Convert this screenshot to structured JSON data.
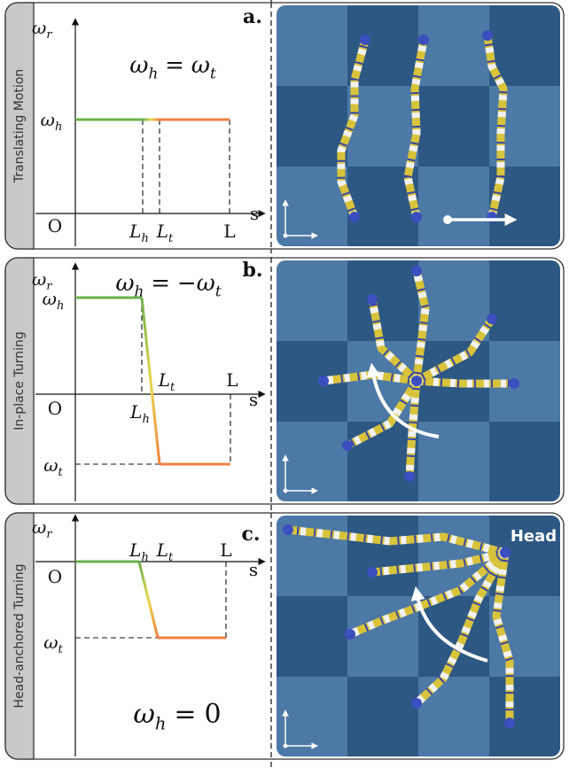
{
  "panels": [
    {
      "side_label": "Translating Motion",
      "letter": "a.",
      "equation": [
        {
          "base": "ω",
          "sub": "h"
        },
        "=",
        {
          "base": "ω",
          "sub": "t"
        }
      ],
      "labels": {
        "y_axis": {
          "base": "ω",
          "sub": "r"
        },
        "x_axis": "s",
        "origin": "O",
        "omega_h": {
          "base": "ω",
          "sub": "h"
        },
        "L_h": {
          "base": "L",
          "sub": "h"
        },
        "L_t": {
          "base": "L",
          "sub": "t"
        },
        "L": "L"
      }
    },
    {
      "side_label": "In-place Turning",
      "letter": "b.",
      "equation": [
        {
          "base": "ω",
          "sub": "h"
        },
        "=",
        {
          "base": "−ω",
          "sub": "t"
        }
      ],
      "labels": {
        "y_axis": {
          "base": "ω",
          "sub": "r"
        },
        "x_axis": "s",
        "origin": "O",
        "omega_h": {
          "base": "ω",
          "sub": "h"
        },
        "omega_t": {
          "base": "ω",
          "sub": "t"
        },
        "L_h": {
          "base": "L",
          "sub": "h"
        },
        "L_t": {
          "base": "L",
          "sub": "t"
        },
        "L": "L"
      }
    },
    {
      "side_label": "Head-anchored Turning",
      "letter": "c.",
      "equation": [
        {
          "base": "ω",
          "sub": "h"
        },
        "=",
        "0"
      ],
      "image_label": "Head",
      "labels": {
        "y_axis": {
          "base": "ω",
          "sub": "r"
        },
        "x_axis": "s",
        "origin": "O",
        "omega_t": {
          "base": "ω",
          "sub": "t"
        },
        "L_h": {
          "base": "L",
          "sub": "h"
        },
        "L_t": {
          "base": "L",
          "sub": "t"
        },
        "L": "L"
      }
    }
  ]
}
